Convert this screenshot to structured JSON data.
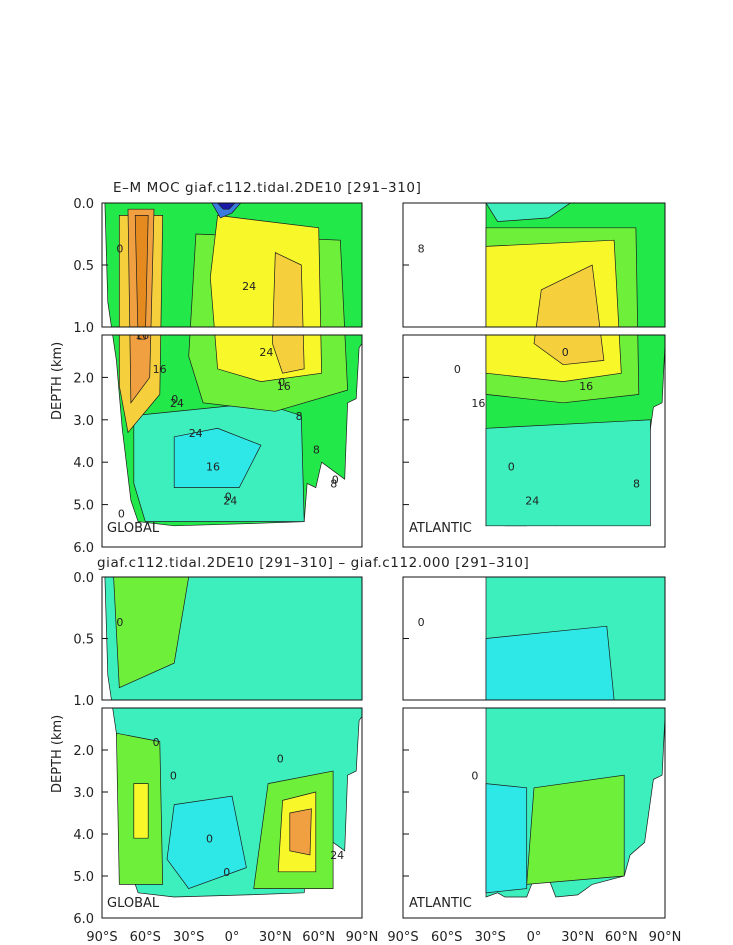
{
  "chart_data": {
    "type": "heatmap",
    "titles": {
      "top": "E–M MOC   giaf.c112.tidal.2DE10  [291–310]",
      "bottom": "giaf.c112.tidal.2DE10  [291–310]  –  giaf.c112.000  [291–310]"
    },
    "ylabel": "DEPTH (km)",
    "depth_ticks_upper": [
      "0.0",
      "0.5",
      "1.0"
    ],
    "depth_ticks_lower": [
      "2.0",
      "3.0",
      "4.0",
      "5.0",
      "6.0"
    ],
    "lat_ticks": [
      "90°S",
      "60°S",
      "30°S",
      "0°",
      "30°N",
      "60°N",
      "90°N"
    ],
    "ylim": [
      6.0,
      0.0
    ],
    "xlim": [
      -90,
      90
    ],
    "region_labels": {
      "global": "GLOBAL",
      "atlantic": "ATLANTIC"
    },
    "panels": [
      {
        "region": "GLOBAL",
        "row": "top",
        "contour_labels": [
          "0",
          "24",
          "24",
          "16",
          "8",
          "16",
          "16",
          "24",
          "8",
          "16",
          "24",
          "24",
          "8",
          "0",
          "0",
          "0",
          "0",
          "0"
        ]
      },
      {
        "region": "ATLANTIC",
        "row": "top",
        "contour_labels": [
          "8",
          "16",
          "24",
          "16",
          "8",
          "0",
          "0",
          "0"
        ]
      },
      {
        "region": "GLOBAL",
        "row": "bottom",
        "contour_labels": [
          "0",
          "0",
          "0",
          "0",
          "24",
          "0",
          "0"
        ]
      },
      {
        "region": "ATLANTIC",
        "row": "bottom",
        "contour_labels": [
          "0",
          "0"
        ]
      }
    ],
    "colors": {
      "deep_blue": "#1a1aa8",
      "blue": "#3a7be0",
      "cyan": "#2ee8e8",
      "aqua": "#3cefbd",
      "green": "#22e84a",
      "lime": "#6ef03a",
      "yellow": "#f7f72a",
      "gold": "#f5cf3c",
      "orange": "#f0a040",
      "darkorange": "#e58a1e"
    }
  }
}
